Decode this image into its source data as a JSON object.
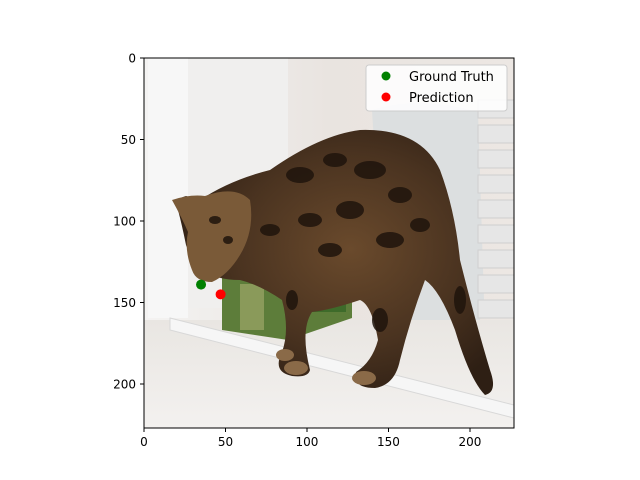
{
  "chart_data": {
    "type": "scatter",
    "title": "",
    "xlabel": "",
    "ylabel": "",
    "xlim": [
      0,
      227
    ],
    "ylim": [
      227,
      0
    ],
    "y_inverted": true,
    "xticks": [
      0,
      50,
      100,
      150,
      200
    ],
    "yticks": [
      0,
      50,
      100,
      150,
      200
    ],
    "xtick_labels": [
      "0",
      "50",
      "100",
      "150",
      "200"
    ],
    "ytick_labels": [
      "0",
      "50",
      "100",
      "150",
      "200"
    ],
    "grid": false,
    "background": "photo of a spotted bengal cat standing over a green box near a white radiator",
    "legend": {
      "placement": "top-right"
    },
    "series": [
      {
        "name": "Ground Truth",
        "color": "#008000",
        "points": [
          {
            "x": 35,
            "y": 139
          }
        ]
      },
      {
        "name": "Prediction",
        "color": "#ff0000",
        "points": [
          {
            "x": 47,
            "y": 145
          }
        ]
      }
    ]
  }
}
